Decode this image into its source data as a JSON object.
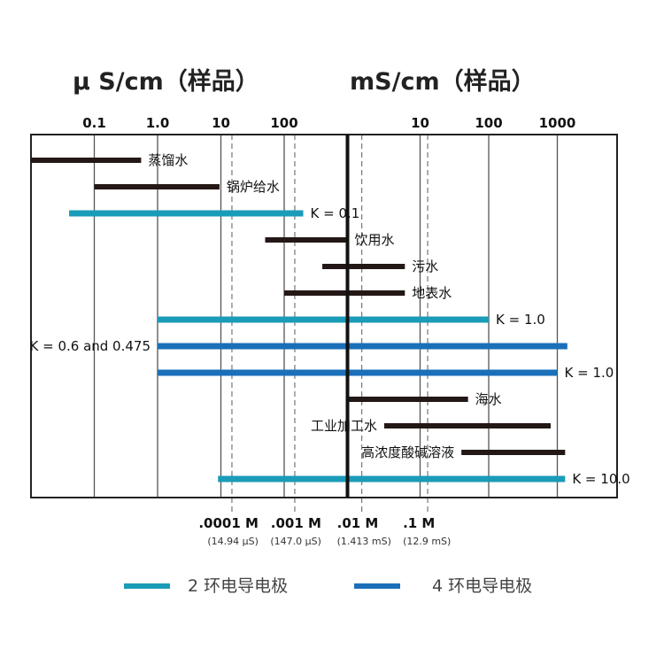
{
  "chart_data": {
    "type": "bar",
    "orientation": "horizontal-range",
    "titles": {
      "left": "μ S/cm（样品）",
      "right": "mS/cm（样品）"
    },
    "x_scale": "log",
    "xlim_uS_per_cm": [
      0.01,
      4000000
    ],
    "top_ticks": [
      {
        "label": "0.1",
        "value_uS": 0.1
      },
      {
        "label": "1.0",
        "value_uS": 1
      },
      {
        "label": "10",
        "value_uS": 10
      },
      {
        "label": "100",
        "value_uS": 100
      },
      {
        "label": "10",
        "value_uS": 10000
      },
      {
        "label": "100",
        "value_uS": 100000
      },
      {
        "label": "1000",
        "value_uS": 1000000
      }
    ],
    "reference_lines": [
      {
        "label": ".0001 M",
        "sub": "(14.94 μS)",
        "value_uS": 14.94
      },
      {
        "label": ".001 M",
        "sub": "(147.0 μS)",
        "value_uS": 147
      },
      {
        "label": ".01 M",
        "sub": "(1.413 mS)",
        "value_uS": 1413
      },
      {
        "label": ".1 M",
        "sub": "(12.9 mS)",
        "value_uS": 12900
      }
    ],
    "divider_value_uS": 1000,
    "series": [
      {
        "name": "2 环电导电极",
        "color": "#1a9bb8"
      },
      {
        "name": "4 环电导电极",
        "color": "#1a6fb8"
      }
    ],
    "bars": [
      {
        "label": "蒸馏水",
        "from_uS": 0.01,
        "to_uS": 0.55,
        "kind": "sample",
        "label_side": "right"
      },
      {
        "label": "锅炉给水",
        "from_uS": 0.1,
        "to_uS": 9.5,
        "kind": "sample",
        "label_side": "right"
      },
      {
        "label": "K = 0.1",
        "from_uS": 0.04,
        "to_uS": 200,
        "kind": "2-ring",
        "label_side": "right"
      },
      {
        "label": "饮用水",
        "from_uS": 50,
        "to_uS": 1000,
        "kind": "sample",
        "label_side": "right"
      },
      {
        "label": "污水",
        "from_uS": 400,
        "to_uS": 6000,
        "kind": "sample",
        "label_side": "right"
      },
      {
        "label": "地表水",
        "from_uS": 100,
        "to_uS": 6000,
        "kind": "sample",
        "label_side": "right"
      },
      {
        "label": "K = 1.0",
        "from_uS": 1,
        "to_uS": 100000,
        "kind": "2-ring",
        "label_side": "right"
      },
      {
        "label": "K = 0.6 and 0.475",
        "from_uS": 1,
        "to_uS": 1400000,
        "kind": "4-ring",
        "label_side": "left"
      },
      {
        "label": "K = 1.0",
        "from_uS": 1,
        "to_uS": 1000000,
        "kind": "4-ring",
        "label_side": "right"
      },
      {
        "label": "海水",
        "from_uS": 1000,
        "to_uS": 50000,
        "kind": "sample",
        "label_side": "right"
      },
      {
        "label": "工业加工水",
        "from_uS": 3000,
        "to_uS": 800000,
        "kind": "sample",
        "label_side": "left"
      },
      {
        "label": "高浓度酸碱溶液",
        "from_uS": 40000,
        "to_uS": 1300000,
        "kind": "sample",
        "label_side": "left"
      },
      {
        "label": "K = 10.0",
        "from_uS": 9,
        "to_uS": 1300000,
        "kind": "2-ring",
        "label_side": "right"
      }
    ],
    "colors": {
      "sample": "#231815",
      "2-ring": "#1a9bb8",
      "4-ring": "#1a6fb8",
      "frame": "#222222",
      "gridline": "#555555"
    },
    "legend_placement": "bottom"
  }
}
